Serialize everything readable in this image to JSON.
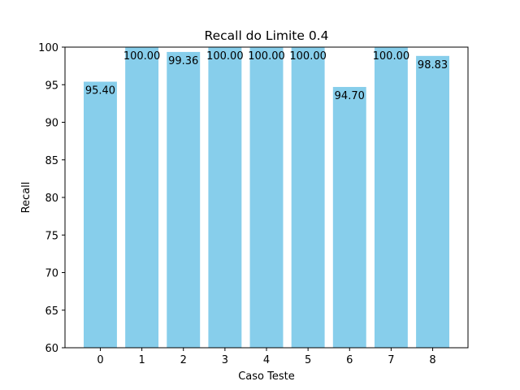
{
  "chart_data": {
    "type": "bar",
    "title": "Recall do Limite 0.4",
    "xlabel": "Caso Teste",
    "ylabel": "Recall",
    "categories": [
      "0",
      "1",
      "2",
      "3",
      "4",
      "5",
      "6",
      "7",
      "8"
    ],
    "values": [
      95.4,
      100.0,
      99.36,
      100.0,
      100.0,
      100.0,
      94.7,
      100.0,
      98.83
    ],
    "value_labels": [
      "95.40",
      "100.00",
      "99.36",
      "100.00",
      "100.00",
      "100.00",
      "94.70",
      "100.00",
      "98.83"
    ],
    "ylim": [
      60,
      100
    ],
    "yticks": [
      60,
      65,
      70,
      75,
      80,
      85,
      90,
      95,
      100
    ],
    "bar_color": "#87ceeb",
    "grid": false,
    "legend": false
  }
}
